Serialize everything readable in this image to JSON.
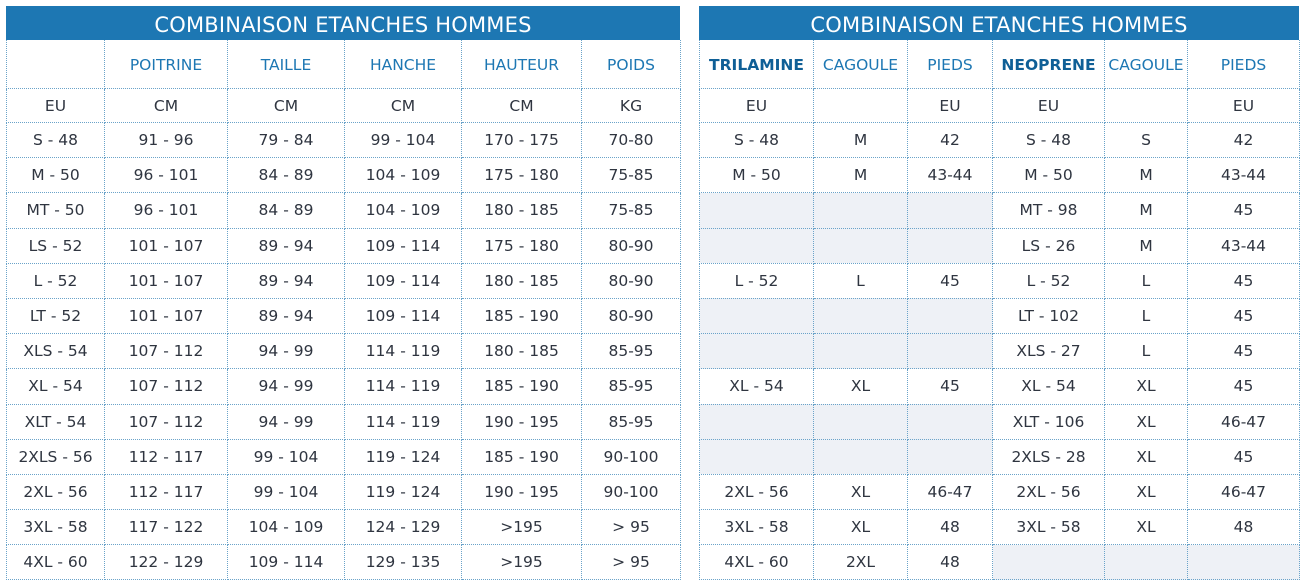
{
  "left": {
    "title": "COMBINAISON ETANCHES HOMMES",
    "headers": [
      "",
      "POITRINE",
      "TAILLE",
      "HANCHE",
      "HAUTEUR",
      "POIDS"
    ],
    "units": [
      "EU",
      "CM",
      "CM",
      "CM",
      "CM",
      "KG"
    ],
    "rows": [
      [
        "S - 48",
        "91 - 96",
        "79 - 84",
        "99 - 104",
        "170 - 175",
        "70-80"
      ],
      [
        "M - 50",
        "96 - 101",
        "84 - 89",
        "104 - 109",
        "175 - 180",
        "75-85"
      ],
      [
        "MT - 50",
        "96 - 101",
        "84 - 89",
        "104 - 109",
        "180 - 185",
        "75-85"
      ],
      [
        "LS - 52",
        "101 - 107",
        "89 - 94",
        "109 - 114",
        "175 - 180",
        "80-90"
      ],
      [
        "L - 52",
        "101 - 107",
        "89 - 94",
        "109 - 114",
        "180 - 185",
        "80-90"
      ],
      [
        "LT - 52",
        "101 - 107",
        "89 - 94",
        "109 - 114",
        "185 - 190",
        "80-90"
      ],
      [
        "XLS - 54",
        "107 - 112",
        "94 - 99",
        "114 - 119",
        "180 - 185",
        "85-95"
      ],
      [
        "XL - 54",
        "107 - 112",
        "94 - 99",
        "114 - 119",
        "185 - 190",
        "85-95"
      ],
      [
        "XLT - 54",
        "107 - 112",
        "94 - 99",
        "114 - 119",
        "190 - 195",
        "85-95"
      ],
      [
        "2XLS - 56",
        "112 - 117",
        "99 - 104",
        "119 - 124",
        "185 - 190",
        "90-100"
      ],
      [
        "2XL - 56",
        "112 - 117",
        "99 - 104",
        "119 - 124",
        "190 - 195",
        "90-100"
      ],
      [
        "3XL - 58",
        "117 - 122",
        "104 - 109",
        "124 - 129",
        ">195",
        "> 95"
      ],
      [
        "4XL - 60",
        "122 - 129",
        "109 - 114",
        "129 - 135",
        ">195",
        "> 95"
      ]
    ]
  },
  "right": {
    "title": "COMBINAISON ETANCHES HOMMES",
    "headers": [
      "TRILAMINE",
      "CAGOULE",
      "PIEDS",
      "NEOPRENE",
      "CAGOULE",
      "PIEDS"
    ],
    "units": [
      "EU",
      "",
      "EU",
      "EU",
      "",
      "EU"
    ],
    "rows": [
      [
        "S - 48",
        "M",
        "42",
        "S - 48",
        "S",
        "42"
      ],
      [
        "M - 50",
        "M",
        "43-44",
        "M - 50",
        "M",
        "43-44"
      ],
      [
        "",
        "",
        "",
        "MT - 98",
        "M",
        "45"
      ],
      [
        "",
        "",
        "",
        "LS - 26",
        "M",
        "43-44"
      ],
      [
        "L - 52",
        "L",
        "45",
        "L - 52",
        "L",
        "45"
      ],
      [
        "",
        "",
        "",
        "LT - 102",
        "L",
        "45"
      ],
      [
        "",
        "",
        "",
        "XLS - 27",
        "L",
        "45"
      ],
      [
        "XL - 54",
        "XL",
        "45",
        "XL - 54",
        "XL",
        "45"
      ],
      [
        "",
        "",
        "",
        "XLT - 106",
        "XL",
        "46-47"
      ],
      [
        "",
        "",
        "",
        "2XLS - 28",
        "XL",
        "45"
      ],
      [
        "2XL - 56",
        "XL",
        "46-47",
        "2XL - 56",
        "XL",
        "46-47"
      ],
      [
        "3XL - 58",
        "XL",
        "48",
        "3XL - 58",
        "XL",
        "48"
      ],
      [
        "4XL - 60",
        "2XL",
        "48",
        "",
        "",
        ""
      ]
    ]
  }
}
